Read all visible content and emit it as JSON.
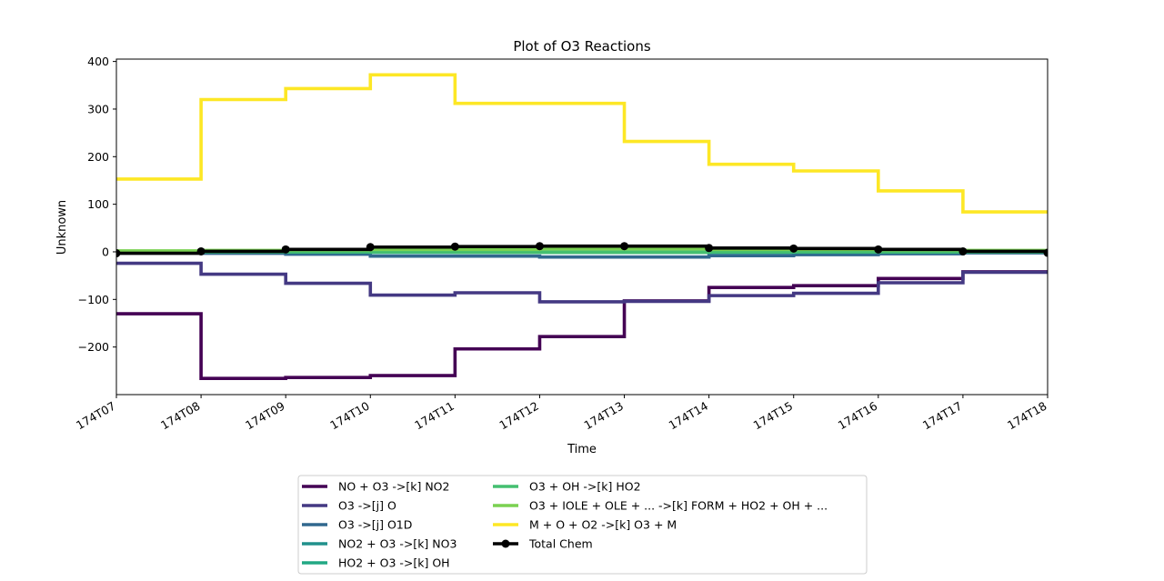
{
  "chart_data": {
    "type": "line",
    "step": "post",
    "title": "Plot of O3 Reactions",
    "xlabel": "Time",
    "ylabel": "Unknown",
    "categories": [
      "174T07",
      "174T08",
      "174T09",
      "174T10",
      "174T11",
      "174T12",
      "174T13",
      "174T14",
      "174T15",
      "174T16",
      "174T17",
      "174T18"
    ],
    "ylim": [
      -300,
      405
    ],
    "yticks": [
      -200,
      -100,
      0,
      100,
      200,
      300,
      400
    ],
    "grid": false,
    "legend_position": "bottom-center",
    "series": [
      {
        "name": "NO + O3 ->[k] NO2",
        "color": "#440154",
        "values": [
          -130,
          -266,
          -264,
          -260,
          -204,
          -178,
          -103,
          -75,
          -71,
          -56,
          -42,
          -42
        ]
      },
      {
        "name": "O3 ->[j] O",
        "color": "#443983",
        "values": [
          -24,
          -47,
          -66,
          -91,
          -86,
          -105,
          -104,
          -92,
          -87,
          -65,
          -43,
          -43
        ]
      },
      {
        "name": "O3 ->[j] O1D",
        "color": "#31688e",
        "values": [
          -1,
          -3,
          -5,
          -9,
          -9,
          -11,
          -11,
          -8,
          -6,
          -4,
          -2,
          -2
        ]
      },
      {
        "name": "NO2 + O3 ->[k] NO3",
        "color": "#21918c",
        "values": [
          0,
          0,
          -1,
          -1,
          -1,
          -1,
          -1,
          -1,
          -1,
          -1,
          0,
          0
        ]
      },
      {
        "name": "HO2 + O3 ->[k] OH",
        "color": "#22a884",
        "values": [
          0,
          0,
          0,
          -1,
          -1,
          -1,
          -1,
          -1,
          0,
          0,
          0,
          0
        ]
      },
      {
        "name": "O3 + OH ->[k] HO2",
        "color": "#44bf70",
        "values": [
          0,
          0,
          0,
          0,
          -1,
          -1,
          -1,
          0,
          0,
          0,
          0,
          0
        ]
      },
      {
        "name": "O3 + IOLE + OLE + ... ->[k] FORM + HO2 + OH + ...",
        "color": "#7ad151",
        "values": [
          2,
          3,
          4,
          5,
          5,
          6,
          6,
          5,
          5,
          4,
          3,
          3
        ]
      },
      {
        "name": "M + O + O2 ->[k] O3 + M",
        "color": "#fde725",
        "values": [
          153,
          320,
          343,
          372,
          312,
          312,
          232,
          184,
          170,
          128,
          84,
          84
        ]
      },
      {
        "name": "Total Chem",
        "color": "#000000",
        "marker": "o",
        "values": [
          -3,
          1,
          5,
          10,
          11,
          12,
          12,
          8,
          7,
          5,
          1,
          -2
        ]
      }
    ]
  }
}
